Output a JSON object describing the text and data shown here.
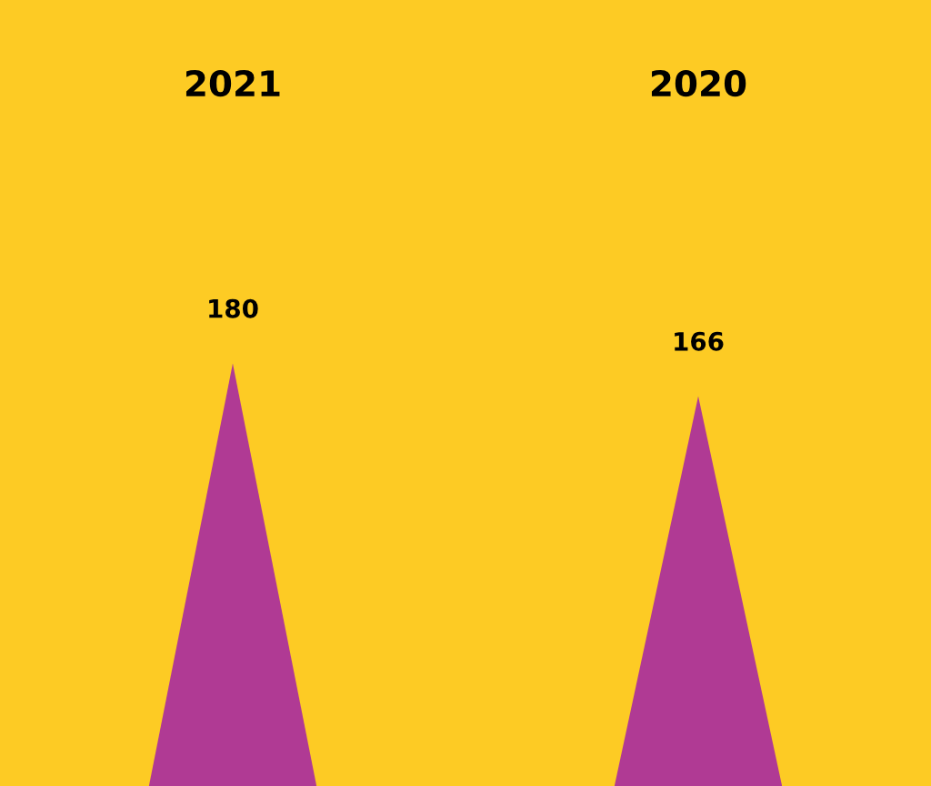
{
  "chart_data": {
    "type": "bar",
    "categories": [
      "2021",
      "2020"
    ],
    "values": [
      180,
      166
    ],
    "color": "#b03a94",
    "data_labels": true
  }
}
